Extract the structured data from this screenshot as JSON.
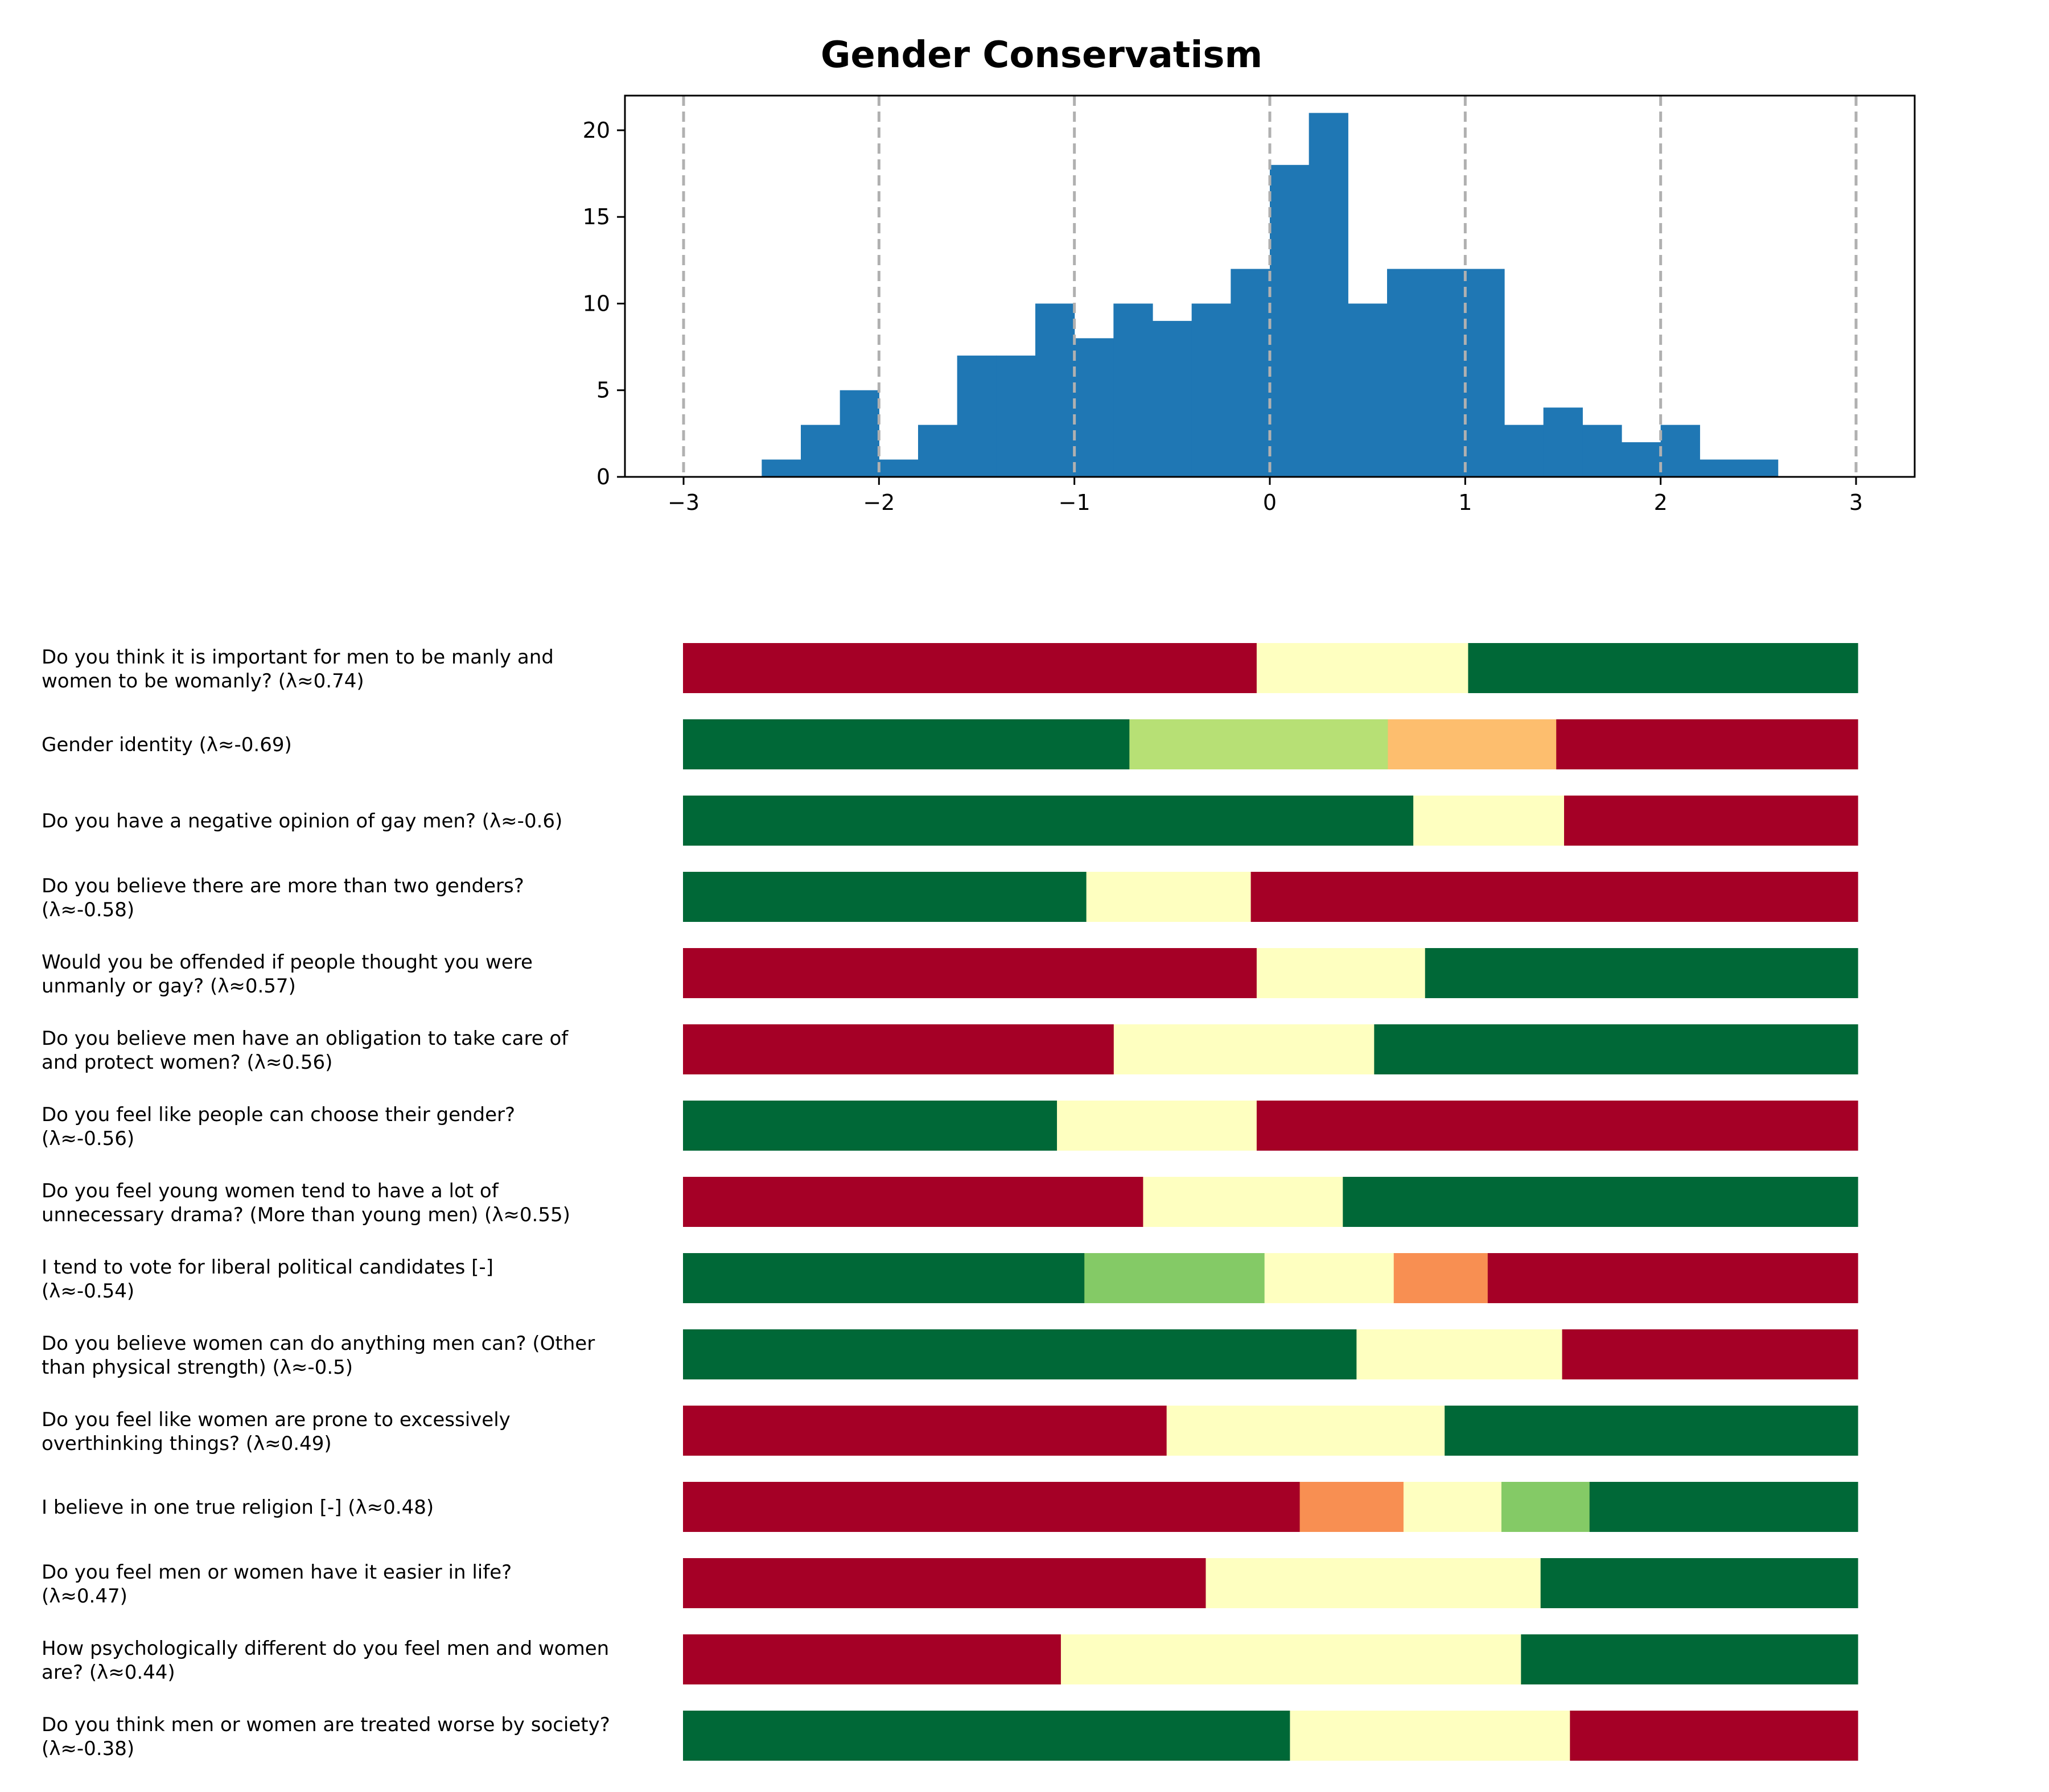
{
  "chart_data": [
    {
      "type": "bar",
      "title": "Gender Conservatism",
      "bin_start": -2.6,
      "bin_width": 0.2,
      "counts": [
        1,
        3,
        5,
        1,
        3,
        7,
        7,
        10,
        8,
        10,
        9,
        10,
        12,
        18,
        21,
        10,
        12,
        12,
        12,
        3,
        4,
        3,
        2,
        3,
        1,
        1
      ],
      "bar_color": "#1f77b4",
      "xlim": [
        -3.3,
        3.3
      ],
      "ylim": [
        0,
        22
      ],
      "xticks": [
        -3,
        -2,
        -1,
        0,
        1,
        2,
        3
      ],
      "xtick_labels": [
        "−3",
        "−2",
        "−1",
        "0",
        "1",
        "2",
        "3"
      ],
      "yticks": [
        0,
        5,
        10,
        15,
        20
      ],
      "ytick_labels": [
        "0",
        "5",
        "10",
        "15",
        "20"
      ],
      "vlines": [
        -3,
        -2,
        -1,
        0,
        1,
        2,
        3
      ],
      "vline_style": "dashed grey"
    },
    {
      "type": "bar",
      "orientation": "horizontal-stacked",
      "range": [
        -3,
        3
      ],
      "colors": {
        "dark_red": "#a50026",
        "orange": "#f88f52",
        "light_orange": "#fdbe6e",
        "pale_yellow": "#feffc0",
        "light_green": "#b7e075",
        "green": "#84ca66",
        "dark_green": "#006837"
      },
      "rows": [
        {
          "label_lines": [
            "Do you think it is important for men to be manly and",
            "women to be womanly? (λ≈0.74)"
          ],
          "segments": [
            {
              "end": -0.07,
              "color": "#a50026"
            },
            {
              "end": 1.01,
              "color": "#feffc0"
            },
            {
              "end": 3,
              "color": "#006837"
            }
          ]
        },
        {
          "label_lines": [
            "Gender identity (λ≈-0.69)"
          ],
          "segments": [
            {
              "end": -0.72,
              "color": "#006837"
            },
            {
              "end": 0.6,
              "color": "#b7e075"
            },
            {
              "end": 1.46,
              "color": "#fdbe6e"
            },
            {
              "end": 3,
              "color": "#a50026"
            }
          ]
        },
        {
          "label_lines": [
            "Do you have a negative opinion of gay men? (λ≈-0.6)"
          ],
          "segments": [
            {
              "end": 0.73,
              "color": "#006837"
            },
            {
              "end": 1.5,
              "color": "#feffc0"
            },
            {
              "end": 3,
              "color": "#a50026"
            }
          ]
        },
        {
          "label_lines": [
            "Do you believe there are more than two genders?",
            "(λ≈-0.58)"
          ],
          "segments": [
            {
              "end": -0.94,
              "color": "#006837"
            },
            {
              "end": -0.1,
              "color": "#feffc0"
            },
            {
              "end": 3,
              "color": "#a50026"
            }
          ]
        },
        {
          "label_lines": [
            "Would you be offended if people thought you were",
            "unmanly or gay? (λ≈0.57)"
          ],
          "segments": [
            {
              "end": -0.07,
              "color": "#a50026"
            },
            {
              "end": 0.79,
              "color": "#feffc0"
            },
            {
              "end": 3,
              "color": "#006837"
            }
          ]
        },
        {
          "label_lines": [
            "Do you believe men have an obligation to take care of",
            "and protect women? (λ≈0.56)"
          ],
          "segments": [
            {
              "end": -0.8,
              "color": "#a50026"
            },
            {
              "end": 0.53,
              "color": "#feffc0"
            },
            {
              "end": 3,
              "color": "#006837"
            }
          ]
        },
        {
          "label_lines": [
            "Do you feel like people can choose their gender?",
            "(λ≈-0.56)"
          ],
          "segments": [
            {
              "end": -1.09,
              "color": "#006837"
            },
            {
              "end": -0.07,
              "color": "#feffc0"
            },
            {
              "end": 3,
              "color": "#a50026"
            }
          ]
        },
        {
          "label_lines": [
            "Do you feel young women tend to have a lot of",
            "unnecessary drama? (More than young men) (λ≈0.55)"
          ],
          "segments": [
            {
              "end": -0.65,
              "color": "#a50026"
            },
            {
              "end": 0.37,
              "color": "#feffc0"
            },
            {
              "end": 3,
              "color": "#006837"
            }
          ]
        },
        {
          "label_lines": [
            "I tend to vote for liberal political candidates [-]",
            "(λ≈-0.54)"
          ],
          "segments": [
            {
              "end": -0.95,
              "color": "#006837"
            },
            {
              "end": -0.03,
              "color": "#84ca66"
            },
            {
              "end": 0.63,
              "color": "#feffc0"
            },
            {
              "end": 1.11,
              "color": "#f88f52"
            },
            {
              "end": 3,
              "color": "#a50026"
            }
          ]
        },
        {
          "label_lines": [
            "Do you believe women can do anything men can? (Other",
            "than physical strength) (λ≈-0.5)"
          ],
          "segments": [
            {
              "end": 0.44,
              "color": "#006837"
            },
            {
              "end": 1.49,
              "color": "#feffc0"
            },
            {
              "end": 3,
              "color": "#a50026"
            }
          ]
        },
        {
          "label_lines": [
            "Do you feel like women are prone to excessively",
            "overthinking things? (λ≈0.49)"
          ],
          "segments": [
            {
              "end": -0.53,
              "color": "#a50026"
            },
            {
              "end": 0.89,
              "color": "#feffc0"
            },
            {
              "end": 3,
              "color": "#006837"
            }
          ]
        },
        {
          "label_lines": [
            "I believe in one true religion [-] (λ≈0.48)"
          ],
          "segments": [
            {
              "end": 0.15,
              "color": "#a50026"
            },
            {
              "end": 0.68,
              "color": "#f88f52"
            },
            {
              "end": 1.18,
              "color": "#feffc0"
            },
            {
              "end": 1.63,
              "color": "#84ca66"
            },
            {
              "end": 3,
              "color": "#006837"
            }
          ]
        },
        {
          "label_lines": [
            "Do you feel men or women have it easier in life?",
            "(λ≈0.47)"
          ],
          "segments": [
            {
              "end": -0.33,
              "color": "#a50026"
            },
            {
              "end": 1.38,
              "color": "#feffc0"
            },
            {
              "end": 3,
              "color": "#006837"
            }
          ]
        },
        {
          "label_lines": [
            "How psychologically different do you feel men and women",
            "are? (λ≈0.44)"
          ],
          "segments": [
            {
              "end": -1.07,
              "color": "#a50026"
            },
            {
              "end": 1.28,
              "color": "#feffc0"
            },
            {
              "end": 3,
              "color": "#006837"
            }
          ]
        },
        {
          "label_lines": [
            "Do you think men or women are treated worse by society?",
            "(λ≈-0.38)"
          ],
          "segments": [
            {
              "end": 0.1,
              "color": "#006837"
            },
            {
              "end": 1.53,
              "color": "#feffc0"
            },
            {
              "end": 3,
              "color": "#a50026"
            }
          ]
        }
      ]
    }
  ]
}
